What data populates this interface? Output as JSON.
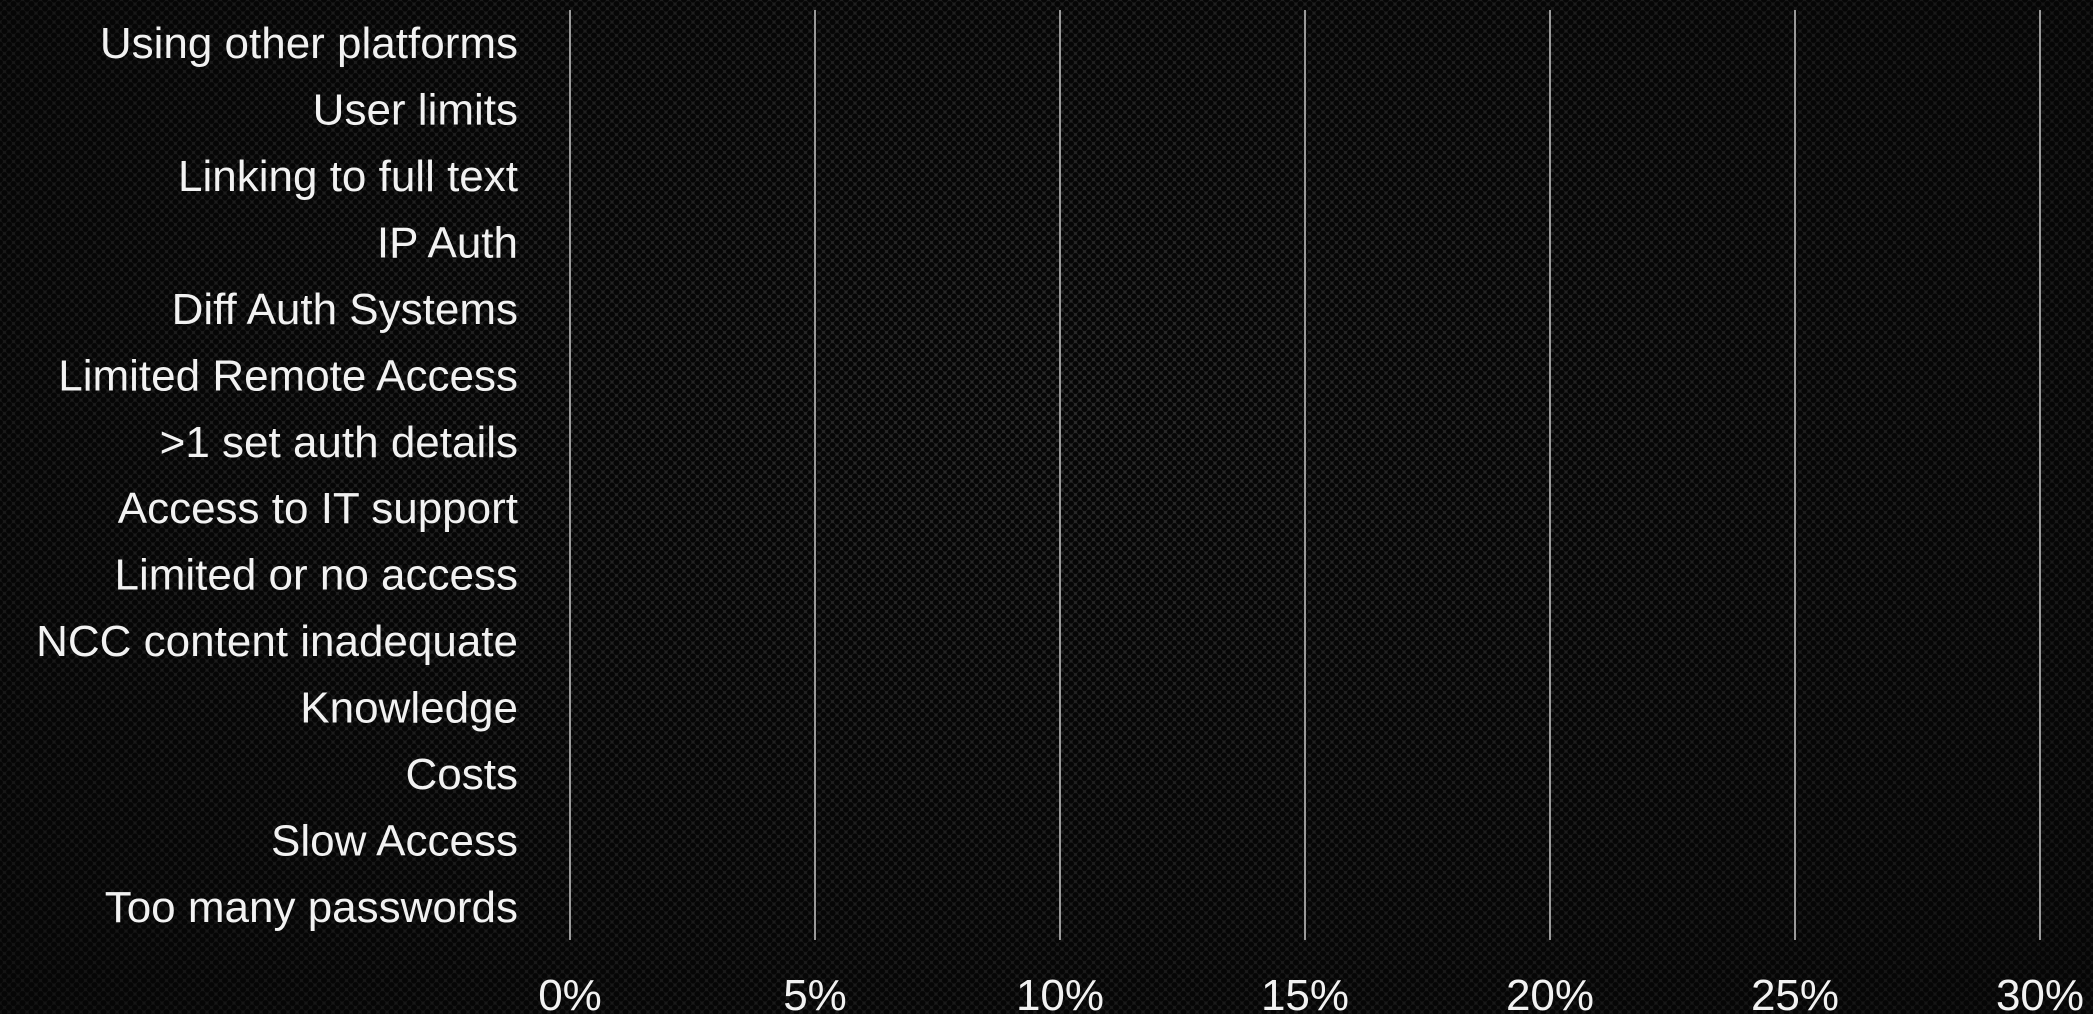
{
  "chart_data": {
    "type": "bar",
    "orientation": "horizontal",
    "categories": [
      "Using other platforms",
      "User limits",
      "Linking to full text",
      "IP Auth",
      "Diff Auth Systems",
      "Limited Remote Access",
      ">1 set auth details",
      "Access to IT support",
      "Limited or no access",
      "NCC content inadequate",
      "Knowledge",
      "Costs",
      "Slow Access",
      "Too many passwords"
    ],
    "values": [
      0,
      0,
      0,
      0,
      0,
      0,
      0,
      0,
      0,
      0,
      0,
      0,
      0,
      0
    ],
    "xlim": [
      0,
      30
    ],
    "x_ticks": [
      0,
      5,
      10,
      15,
      20,
      25,
      30
    ],
    "x_tick_labels": [
      "0%",
      "5%",
      "10%",
      "15%",
      "20%",
      "25%",
      "30%"
    ],
    "grid": true,
    "title": "",
    "xlabel": "",
    "ylabel": "",
    "colors": {
      "text": "#f2f2f2",
      "grid": "#9a9a9a",
      "bar": "#5b8fd6"
    }
  }
}
